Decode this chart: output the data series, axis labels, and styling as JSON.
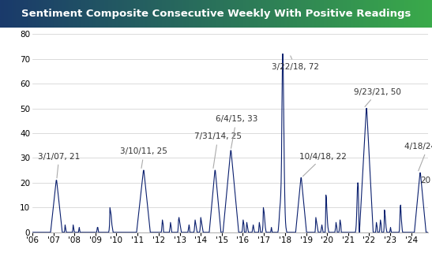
{
  "title": "Sentiment Composite Consecutive Weekly With Positive Readings",
  "title_bg_left": "#1a3a6b",
  "title_bg_right": "#3aaa4a",
  "line_color": "#0a1f6e",
  "line_width": 0.8,
  "ylim": [
    0,
    82
  ],
  "yticks": [
    0,
    10,
    20,
    30,
    40,
    50,
    60,
    70,
    80
  ],
  "x_labels": [
    "'06",
    "'07",
    "'08",
    "'09",
    "'10",
    "'11",
    "'12",
    "'13",
    "'14",
    "'15",
    "'16",
    "'17",
    "'18",
    "'19",
    "'20",
    "'21",
    "'22",
    "'23",
    "'24"
  ],
  "background_color": "#ffffff",
  "grid_color": "#cccccc",
  "annotation_fontsize": 7.5,
  "annotation_color": "#333333",
  "arrow_color": "#aaaaaa"
}
